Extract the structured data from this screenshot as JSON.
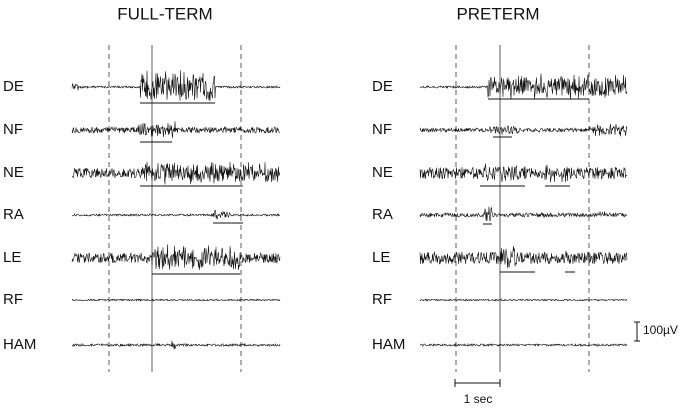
{
  "panels": [
    {
      "title": "FULL-TERM",
      "channels": [
        "DE",
        "NF",
        "NE",
        "RA",
        "LE",
        "RF",
        "HAM"
      ]
    },
    {
      "title": "PRETERM",
      "channels": [
        "DE",
        "NF",
        "NE",
        "RA",
        "LE",
        "RF",
        "HAM"
      ]
    }
  ],
  "scale_bars": {
    "amplitude": "100µV",
    "time": "1 sec"
  }
}
